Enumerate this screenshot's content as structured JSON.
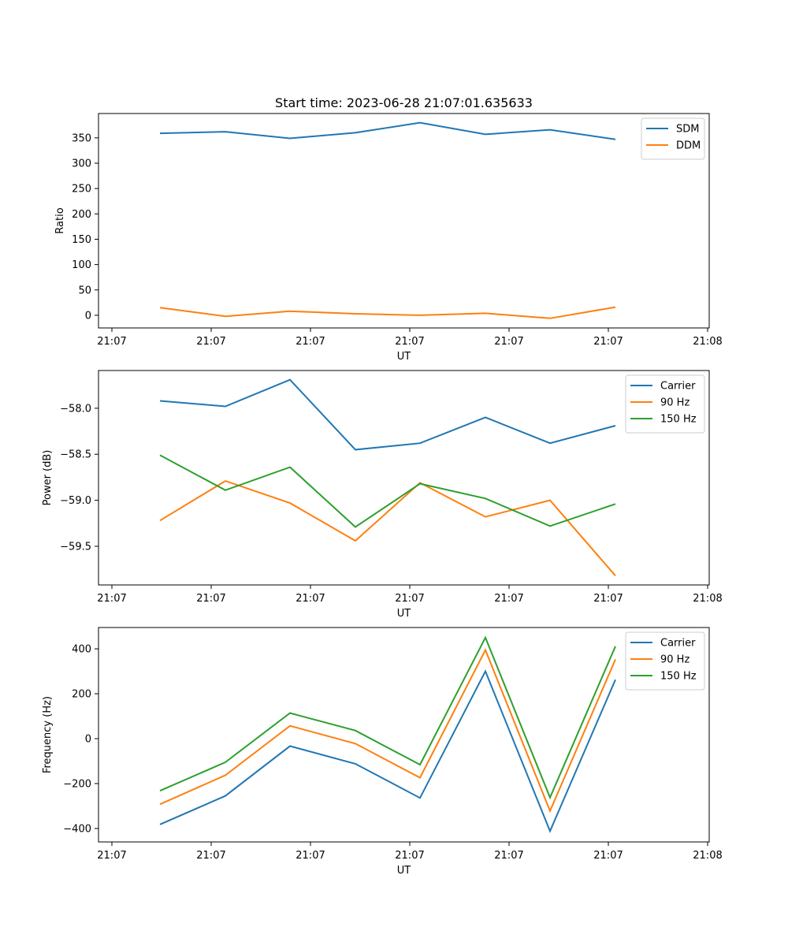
{
  "chart_data": [
    {
      "type": "line",
      "title": "Start time: 2023-06-28 21:07:01.635633",
      "xlabel": "UT",
      "ylabel": "Ratio",
      "x_tick_labels": [
        "21:07",
        "21:07",
        "21:07",
        "21:07",
        "21:07",
        "21:07",
        "21:08"
      ],
      "y_ticks": [
        0,
        50,
        100,
        150,
        200,
        250,
        300,
        350
      ],
      "ylim": [
        -25,
        398
      ],
      "legend": "top-right",
      "grid": false,
      "series": [
        {
          "name": "SDM",
          "color": "#1f77b4",
          "values": [
            359,
            362,
            349,
            360,
            380,
            357,
            366,
            347
          ]
        },
        {
          "name": "DDM",
          "color": "#ff7f0e",
          "values": [
            15,
            -2,
            8,
            3,
            0,
            4,
            -6,
            16
          ]
        }
      ]
    },
    {
      "type": "line",
      "title": "",
      "xlabel": "UT",
      "ylabel": "Power (dB)",
      "x_tick_labels": [
        "21:07",
        "21:07",
        "21:07",
        "21:07",
        "21:07",
        "21:07",
        "21:08"
      ],
      "y_ticks": [
        -58.0,
        -58.5,
        -59.0,
        -59.5
      ],
      "y_tick_labels": [
        "−58.0",
        "−58.5",
        "−59.0",
        "−59.5"
      ],
      "ylim": [
        -59.92,
        -57.59
      ],
      "legend": "top-right",
      "grid": false,
      "series": [
        {
          "name": "Carrier",
          "color": "#1f77b4",
          "values": [
            -57.92,
            -57.98,
            -57.69,
            -58.45,
            -58.38,
            -58.1,
            -58.38,
            -58.19
          ]
        },
        {
          "name": "90 Hz",
          "color": "#ff7f0e",
          "values": [
            -59.22,
            -58.79,
            -59.03,
            -59.44,
            -58.81,
            -59.18,
            -59.0,
            -59.82
          ]
        },
        {
          "name": "150 Hz",
          "color": "#2ca02c",
          "values": [
            -58.51,
            -58.89,
            -58.64,
            -59.29,
            -58.82,
            -58.98,
            -59.28,
            -59.04
          ]
        }
      ]
    },
    {
      "type": "line",
      "title": "",
      "xlabel": "UT",
      "ylabel": "Frequency (Hz)",
      "x_tick_labels": [
        "21:07",
        "21:07",
        "21:07",
        "21:07",
        "21:07",
        "21:07",
        "21:08"
      ],
      "y_ticks": [
        -400,
        -200,
        0,
        200,
        400
      ],
      "y_tick_labels": [
        "−400",
        "−200",
        "0",
        "200",
        "400"
      ],
      "ylim": [
        -460,
        495
      ],
      "legend": "top-right",
      "grid": false,
      "series": [
        {
          "name": "Carrier",
          "color": "#1f77b4",
          "values": [
            -382,
            -255,
            -33,
            -112,
            -264,
            300,
            -412,
            263
          ]
        },
        {
          "name": "90 Hz",
          "color": "#ff7f0e",
          "values": [
            -292,
            -163,
            57,
            -22,
            -174,
            395,
            -322,
            353
          ]
        },
        {
          "name": "150 Hz",
          "color": "#2ca02c",
          "values": [
            -232,
            -105,
            114,
            36,
            -116,
            450,
            -262,
            411
          ]
        }
      ]
    }
  ]
}
